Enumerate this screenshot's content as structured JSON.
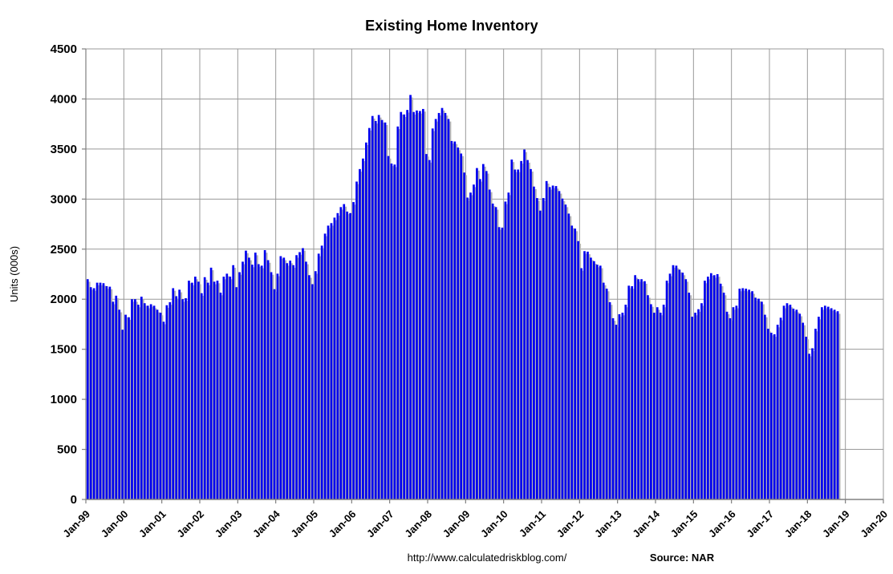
{
  "chart": {
    "title": "Existing Home Inventory",
    "y_axis_title": "Units (000s)",
    "footer": {
      "url": "http://www.calculatedriskblog.com/",
      "source": "Source: NAR"
    },
    "colors": {
      "bar": "#0000ef",
      "bar_shadow": "#b5b5b5",
      "gridline": "#999999",
      "axis": "#808080",
      "text": "#000000",
      "background": "#ffffff"
    }
  },
  "chart_data": {
    "type": "bar",
    "title": "Existing Home Inventory",
    "xlabel": "",
    "ylabel": "Units (000s)",
    "ylim": [
      0,
      4500
    ],
    "y_tick_step": 500,
    "y_tick_labels": [
      "0",
      "500",
      "1000",
      "1500",
      "2000",
      "2500",
      "3000",
      "3500",
      "4000",
      "4500"
    ],
    "x_tick_labels": [
      "Jan-99",
      "Jan-00",
      "Jan-01",
      "Jan-02",
      "Jan-03",
      "Jan-04",
      "Jan-05",
      "Jan-06",
      "Jan-07",
      "Jan-08",
      "Jan-09",
      "Jan-10",
      "Jan-11",
      "Jan-12",
      "Jan-13",
      "Jan-14",
      "Jan-15",
      "Jan-16",
      "Jan-17",
      "Jan-18",
      "Jan-19",
      "Jan-20"
    ],
    "x_axis_span_months": 252,
    "frequency": "monthly",
    "first_month": "Jan-1999",
    "last_month": "Oct-2018",
    "grid": true,
    "legend": false,
    "source": "NAR",
    "series": [
      {
        "name": "Existing Home Inventory (000s)",
        "values": [
          2200,
          2120,
          2110,
          2165,
          2165,
          2160,
          2130,
          2125,
          1975,
          2035,
          1895,
          1695,
          1845,
          1820,
          2000,
          2000,
          1945,
          2025,
          1960,
          1935,
          1950,
          1935,
          1895,
          1865,
          1775,
          1940,
          1970,
          2110,
          2030,
          2095,
          2000,
          2010,
          2185,
          2165,
          2225,
          2175,
          2060,
          2220,
          2165,
          2315,
          2175,
          2185,
          2065,
          2225,
          2255,
          2225,
          2340,
          2120,
          2270,
          2375,
          2485,
          2415,
          2345,
          2465,
          2350,
          2335,
          2490,
          2390,
          2270,
          2100,
          2255,
          2430,
          2415,
          2360,
          2385,
          2340,
          2440,
          2470,
          2510,
          2375,
          2240,
          2150,
          2280,
          2455,
          2535,
          2655,
          2735,
          2760,
          2815,
          2860,
          2920,
          2950,
          2875,
          2860,
          2970,
          3175,
          3300,
          3405,
          3565,
          3710,
          3830,
          3780,
          3840,
          3790,
          3765,
          3430,
          3355,
          3345,
          3725,
          3870,
          3845,
          3890,
          4040,
          3870,
          3885,
          3880,
          3900,
          3450,
          3390,
          3705,
          3800,
          3860,
          3910,
          3860,
          3800,
          3580,
          3575,
          3515,
          3455,
          3265,
          3015,
          3065,
          3145,
          3310,
          3200,
          3350,
          3280,
          3095,
          2955,
          2920,
          2720,
          2715,
          2975,
          3065,
          3395,
          3295,
          3295,
          3380,
          3495,
          3390,
          3300,
          3125,
          3010,
          2885,
          3010,
          3180,
          3120,
          3135,
          3130,
          3080,
          3005,
          2945,
          2855,
          2735,
          2705,
          2580,
          2310,
          2480,
          2475,
          2415,
          2380,
          2345,
          2335,
          2165,
          2105,
          1970,
          1810,
          1745,
          1850,
          1865,
          1945,
          2135,
          2130,
          2240,
          2200,
          2200,
          2180,
          2040,
          1950,
          1865,
          1920,
          1865,
          1945,
          2185,
          2255,
          2340,
          2335,
          2295,
          2265,
          2200,
          2065,
          1825,
          1865,
          1900,
          1960,
          2185,
          2225,
          2260,
          2240,
          2250,
          2155,
          2065,
          1875,
          1810,
          1920,
          1935,
          2105,
          2110,
          2105,
          2095,
          2080,
          2015,
          2005,
          1975,
          1845,
          1705,
          1665,
          1650,
          1745,
          1815,
          1935,
          1960,
          1945,
          1905,
          1895,
          1855,
          1765,
          1625,
          1455,
          1510,
          1705,
          1825,
          1920,
          1935,
          1925,
          1910,
          1895,
          1880
        ]
      }
    ]
  }
}
